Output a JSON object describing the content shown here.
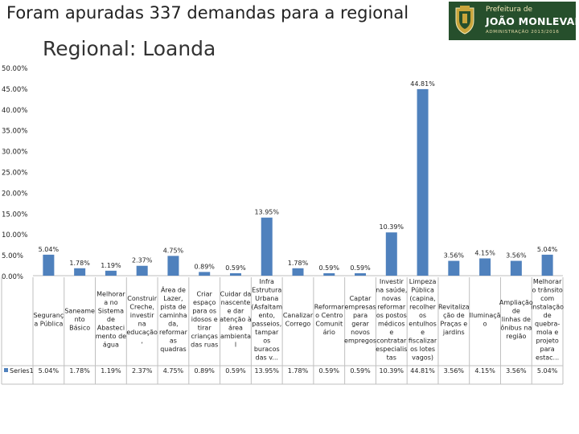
{
  "page": {
    "headline": "Foram apuradas 337 demandas para a regional"
  },
  "logo": {
    "line1": "Prefeitura de",
    "line2": "JOÃO MONLEVADE",
    "line3": "ADMINISTRAÇÃO 2013/2016",
    "crest_icon": "city-coat-of-arms-icon",
    "bg_color": "#264f2c"
  },
  "chart_data": {
    "type": "bar",
    "title": "Regional: Loanda",
    "ylim": [
      0,
      50
    ],
    "ytick_labels": [
      "0.00%",
      "5.00%",
      "10.00%",
      "15.00%",
      "20.00%",
      "25.00%",
      "30.00%",
      "35.00%",
      "40.00%",
      "45.00%",
      "50.00%"
    ],
    "grid": false,
    "bar_color": "#4f81bd",
    "series": [
      {
        "name": "Series1",
        "values": [
          5.04,
          1.78,
          1.19,
          2.37,
          4.75,
          0.89,
          0.59,
          13.95,
          1.78,
          0.59,
          0.59,
          10.39,
          44.81,
          3.56,
          4.15,
          3.56,
          5.04
        ],
        "value_labels": [
          "5.04%",
          "1.78%",
          "1.19%",
          "2.37%",
          "4.75%",
          "0.89%",
          "0.59%",
          "13.95%",
          "1.78%",
          "0.59%",
          "0.59%",
          "10.39%",
          "44.81%",
          "3.56%",
          "4.15%",
          "3.56%",
          "5.04%"
        ]
      }
    ],
    "categories": [
      [
        "Seguranç",
        "a Pública"
      ],
      [
        "Saneame",
        "nto",
        "Básico"
      ],
      [
        "Melhorar",
        "a no",
        "Sistema",
        "de",
        "Abasteci",
        "mento de",
        "água"
      ],
      [
        "Construir",
        "Creche,",
        "investir",
        "na",
        "educação",
        ","
      ],
      [
        "Área de",
        "Lazer,",
        "pista de",
        "caminha",
        "da,",
        "reformar",
        "as",
        "quadras"
      ],
      [
        "Criar",
        "espaço",
        "para os",
        "idosos e",
        "tirar",
        "crianças",
        "das ruas"
      ],
      [
        "Cuidar da",
        "nascente",
        "e dar",
        "atenção à",
        "área",
        "ambienta",
        "l"
      ],
      [
        "Infra",
        "Estrutura",
        "Urbana",
        "(Asfaltam",
        "ento,",
        "passeios,",
        "tampar",
        "os",
        "buracos",
        "das v..."
      ],
      [
        "Canalizar",
        "Corrego"
      ],
      [
        "Reformar",
        "o Centro",
        "Comunit",
        "ário"
      ],
      [
        "Captar",
        "empresas",
        "para",
        "gerar",
        "novos",
        "empregos"
      ],
      [
        "Investir",
        "na saúde,",
        "novas",
        "reformar",
        "os postos",
        "médicos",
        "e",
        "contratar",
        "especialis",
        "tas"
      ],
      [
        "Limpeza",
        "Pública",
        "(capina,",
        "recolher",
        "os",
        "entulhos",
        "e",
        "fiscalizar",
        "os lotes",
        "vagos)"
      ],
      [
        "Revitaliza",
        "ção de",
        "Praças e",
        "jardins"
      ],
      [
        "Iluminaçã",
        "o"
      ],
      [
        "Ampliação",
        "de",
        "linhas de",
        "ônibus na",
        "região"
      ],
      [
        "Melhorar",
        "o trânsito",
        "com",
        "instalação",
        "de",
        "quebra-",
        "mola e",
        "projeto",
        "para",
        "estac..."
      ]
    ]
  }
}
